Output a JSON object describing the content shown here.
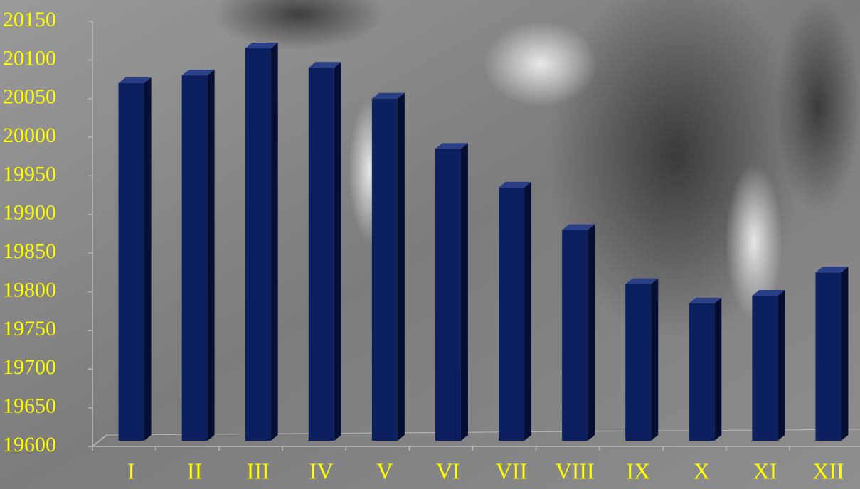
{
  "chart_data": {
    "type": "bar3d",
    "categories": [
      "I",
      "II",
      "III",
      "IV",
      "V",
      "VI",
      "VII",
      "VIII",
      "IX",
      "X",
      "XI",
      "XII"
    ],
    "values": [
      20070,
      20080,
      20115,
      20090,
      20050,
      19985,
      19935,
      19880,
      19810,
      19785,
      19795,
      19825
    ],
    "color": "#0c1f5e",
    "ylim": [
      19600,
      20150
    ],
    "yticks": [
      19600,
      19650,
      19700,
      19750,
      19800,
      19850,
      19900,
      19950,
      20000,
      20050,
      20100,
      20150
    ],
    "label_color": "#ffff00"
  }
}
